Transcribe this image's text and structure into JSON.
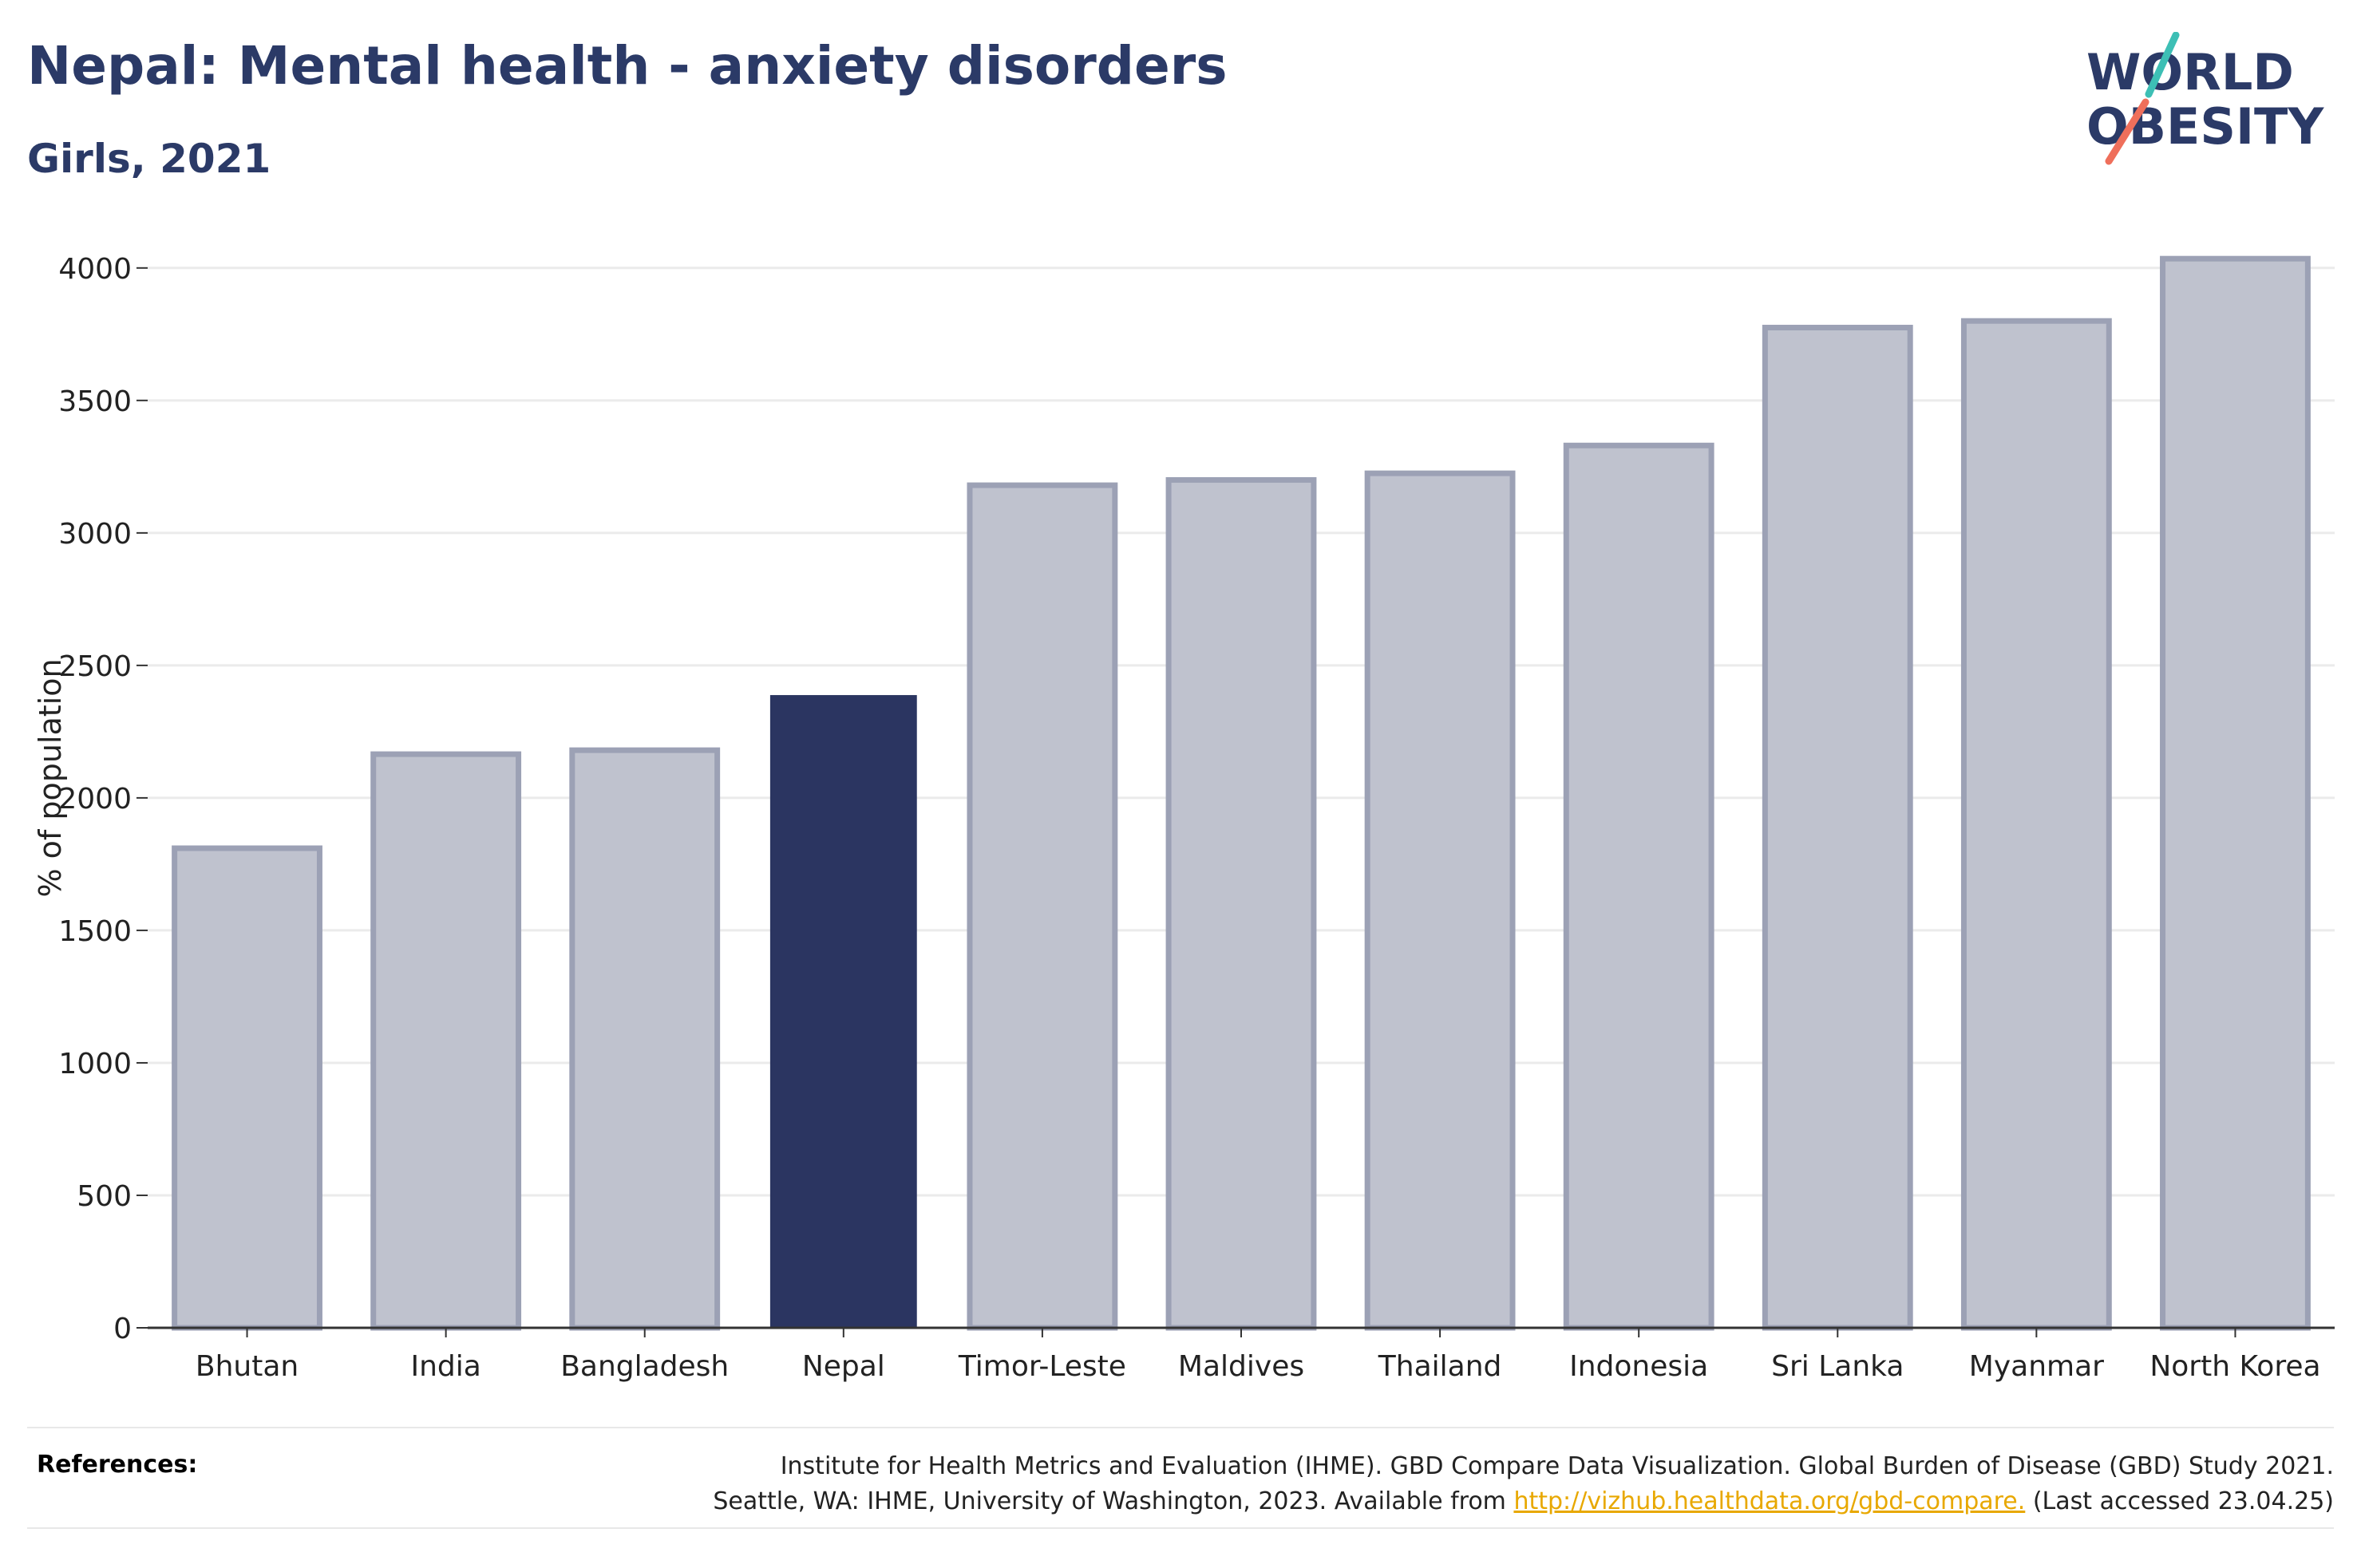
{
  "header": {
    "title": "Nepal: Mental health - anxiety disorders",
    "subtitle": "Girls, 2021"
  },
  "logo": {
    "line1": "WORLD",
    "line2": "OBESITY",
    "colors": {
      "text": "#2b3a67",
      "slash_top": "#3dbfb5",
      "slash_bottom": "#ef6f5b"
    }
  },
  "chart_data": {
    "type": "bar",
    "categories": [
      "Bhutan",
      "India",
      "Bangladesh",
      "Nepal",
      "Timor-Leste",
      "Maldives",
      "Thailand",
      "Indonesia",
      "Sri Lanka",
      "Myanmar",
      "North Korea"
    ],
    "values": [
      1810,
      2165,
      2180,
      2385,
      3180,
      3200,
      3225,
      3330,
      3775,
      3800,
      4035
    ],
    "highlight": "Nepal",
    "ylabel": "% of population",
    "xlabel": "",
    "ylim": [
      0,
      4150
    ],
    "yticks": [
      0,
      500,
      1000,
      1500,
      2000,
      2500,
      3000,
      3500,
      4000
    ],
    "grid": true,
    "colors": {
      "highlight": "#2b3561",
      "other_fill": "#bfc2ce",
      "other_edge": "#9ca1b5",
      "grid": "#ebebeb",
      "axis": "#333333"
    }
  },
  "references": {
    "label": "References:",
    "line1": "Institute for Health Metrics and Evaluation (IHME). GBD Compare Data Visualization. Global Burden of Disease (GBD) Study 2021.",
    "line2_prefix": "Seattle, WA: IHME, University of Washington, 2023. Available from ",
    "link": "http://vizhub.healthdata.org/gbd-compare.",
    "line2_suffix": " (Last accessed 23.04.25)"
  }
}
